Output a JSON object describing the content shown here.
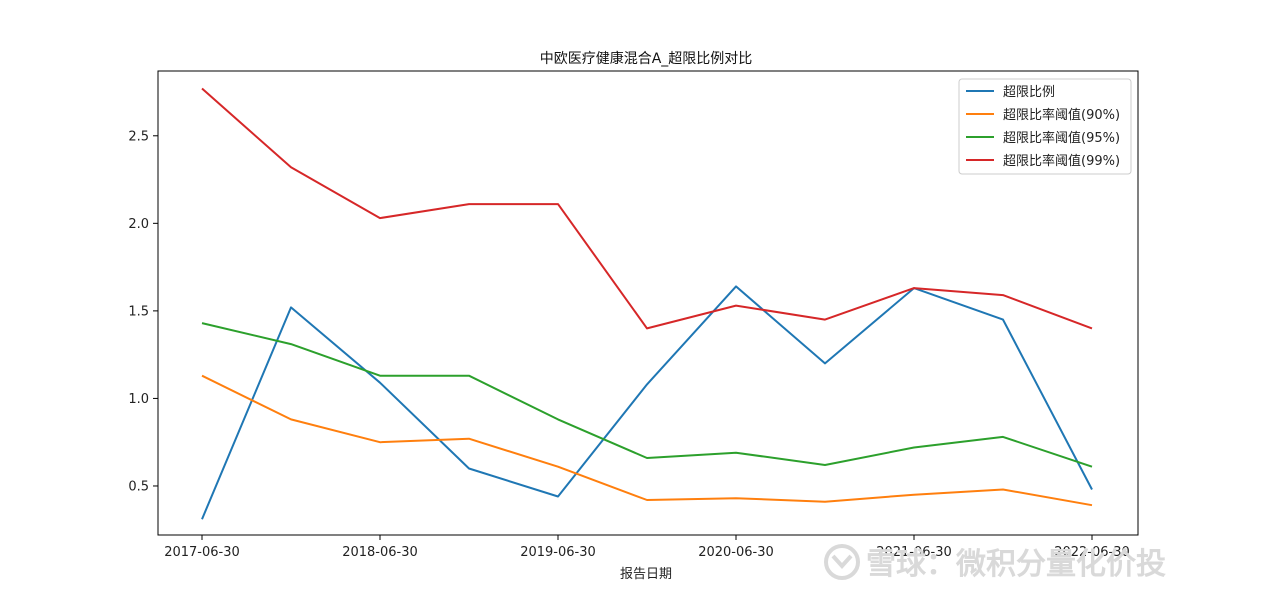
{
  "chart_data": {
    "type": "line",
    "title": "中欧医疗健康混合A_超限比例对比",
    "xlabel": "报告日期",
    "ylabel": "",
    "x": [
      "2017-06-30",
      "2017-12-31",
      "2018-06-30",
      "2018-12-31",
      "2019-06-30",
      "2019-12-31",
      "2020-06-30",
      "2020-12-31",
      "2021-06-30",
      "2021-12-31",
      "2022-06-30"
    ],
    "xticks": [
      "2017-06-30",
      "2018-06-30",
      "2019-06-30",
      "2020-06-30",
      "2021-06-30",
      "2022-06-30"
    ],
    "yticks": [
      "0.5",
      "1.0",
      "1.5",
      "2.0",
      "2.5"
    ],
    "ylim": [
      0.22,
      2.87
    ],
    "legend_position": "top-right",
    "grid": false,
    "series": [
      {
        "name": "超限比例",
        "color": "#1f77b4",
        "values": [
          0.31,
          1.52,
          1.09,
          0.6,
          0.44,
          1.08,
          1.64,
          1.2,
          1.63,
          1.45,
          0.48
        ]
      },
      {
        "name": "超限比率阈值(90%)",
        "color": "#ff7f0e",
        "values": [
          1.13,
          0.88,
          0.75,
          0.77,
          0.61,
          0.42,
          0.43,
          0.41,
          0.45,
          0.48,
          0.39
        ]
      },
      {
        "name": "超限比率阈值(95%)",
        "color": "#2ca02c",
        "values": [
          1.43,
          1.31,
          1.13,
          1.13,
          0.88,
          0.66,
          0.69,
          0.62,
          0.72,
          0.78,
          0.61
        ]
      },
      {
        "name": "超限比率阈值(99%)",
        "color": "#d62728",
        "values": [
          2.77,
          2.32,
          2.03,
          2.11,
          2.11,
          1.4,
          1.53,
          1.45,
          1.63,
          1.59,
          1.4
        ]
      }
    ]
  },
  "watermark": "雪球：微积分量化价投"
}
